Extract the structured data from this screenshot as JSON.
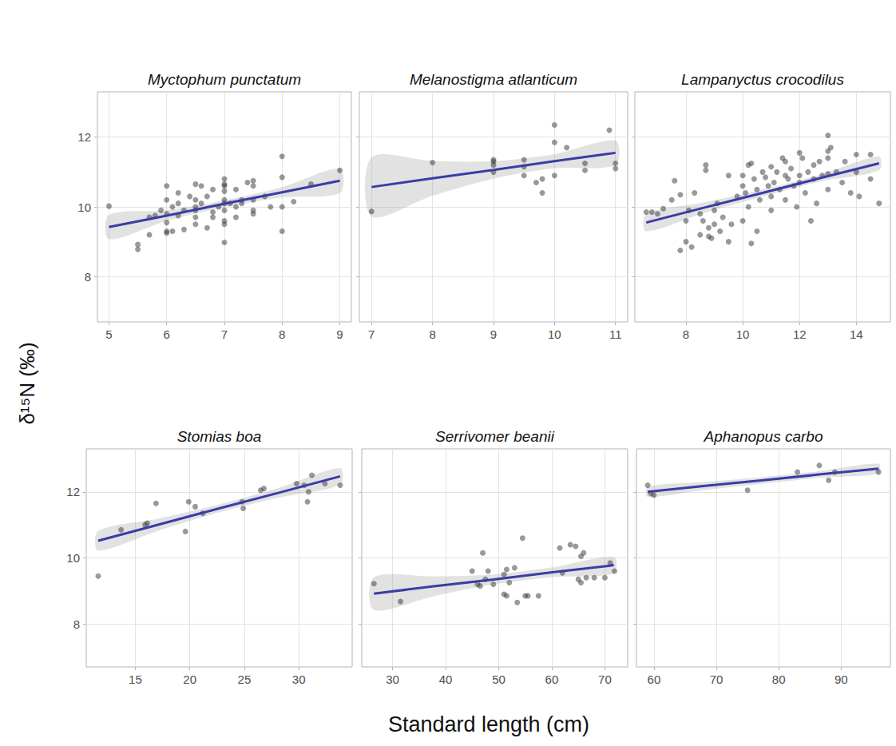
{
  "xlabel": "Standard length (cm)",
  "ylabel": "δ¹⁵N (‰)",
  "chart_data": [
    {
      "type": "scatter",
      "title": "Myctophum punctatum",
      "color": "#333333",
      "marker": "circle",
      "grid": true,
      "tick_labels": true,
      "x": [
        5,
        5.5,
        5.5,
        5.7,
        5.7,
        5.8,
        5.9,
        6,
        6,
        6,
        6,
        6,
        6,
        6.1,
        6.1,
        6.2,
        6.2,
        6.2,
        6.3,
        6.3,
        6.4,
        6.5,
        6.5,
        6.5,
        6.5,
        6.5,
        6.5,
        6.6,
        6.6,
        6.7,
        6.7,
        6.8,
        6.8,
        6.8,
        6.9,
        7,
        7,
        7,
        7,
        7,
        7,
        7,
        7,
        7,
        7,
        7.1,
        7.2,
        7.2,
        7.2,
        7.3,
        7.3,
        7.4,
        7.5,
        7.5,
        7.5,
        7.5,
        7.5,
        7.7,
        7.8,
        8,
        8,
        8,
        8,
        8.2,
        8.5,
        9
      ],
      "values": [
        10.02,
        8.92,
        8.78,
        9.2,
        9.7,
        9.75,
        9.9,
        9.25,
        9.55,
        9.8,
        10.2,
        10.6,
        9.3,
        10.0,
        9.3,
        9.75,
        10.1,
        10.4,
        9.9,
        9.35,
        10.3,
        10.65,
        9.5,
        9.9,
        10.0,
        10.2,
        9.7,
        10.1,
        10.6,
        9.4,
        10.3,
        10.5,
        9.7,
        9.85,
        10.0,
        10.8,
        10.6,
        10.45,
        10.2,
        10.1,
        9.9,
        9.6,
        9.5,
        8.98,
        10.65,
        10.1,
        10.0,
        9.7,
        10.5,
        10.1,
        10.2,
        10.7,
        10.75,
        10.6,
        9.9,
        9.8,
        10.2,
        10.3,
        10.0,
        11.45,
        10.85,
        10.0,
        9.3,
        10.15,
        10.65,
        11.05
      ],
      "fit": {
        "color": "#3b3ba8",
        "x": [
          5,
          6,
          7,
          8,
          9
        ],
        "values": [
          9.42,
          9.75,
          10.09,
          10.42,
          10.75
        ],
        "lower": [
          9.07,
          9.6,
          9.99,
          10.27,
          10.4
        ],
        "upper": [
          9.77,
          9.9,
          10.19,
          10.57,
          11.1
        ]
      },
      "xlim": [
        4.8,
        9.2
      ],
      "xticks": [
        5,
        6,
        7,
        8,
        9
      ],
      "ylim": [
        6.7,
        13.3
      ],
      "yticks": [
        8,
        10,
        12
      ]
    },
    {
      "type": "scatter",
      "title": "Melanostigma atlanticum",
      "color": "#333333",
      "marker": "circle",
      "grid": true,
      "tick_labels": "x",
      "x": [
        7,
        8,
        9,
        9,
        9,
        9,
        9.5,
        9.5,
        9.5,
        9.7,
        9.8,
        9.8,
        10,
        10,
        10,
        10.2,
        10.5,
        10.5,
        10.9,
        11,
        11
      ],
      "values": [
        9.87,
        11.27,
        11.35,
        11.3,
        11.0,
        11.2,
        11.35,
        11.15,
        10.9,
        10.7,
        10.4,
        10.8,
        12.35,
        11.85,
        10.9,
        11.7,
        11.25,
        11.05,
        12.2,
        11.25,
        11.1
      ],
      "fit": {
        "color": "#3b3ba8",
        "x": [
          7,
          8,
          9,
          10,
          11
        ],
        "values": [
          10.57,
          10.82,
          11.06,
          11.31,
          11.55
        ],
        "lower": [
          9.72,
          10.32,
          10.81,
          11.11,
          11.2
        ],
        "upper": [
          11.42,
          11.32,
          11.31,
          11.51,
          11.9
        ]
      },
      "xlim": [
        6.8,
        11.2
      ],
      "xticks": [
        7,
        8,
        9,
        10,
        11
      ],
      "ylim": [
        6.7,
        13.3
      ],
      "yticks": [
        8,
        10,
        12
      ]
    },
    {
      "type": "scatter",
      "title": "Lampanyctus crocodilus",
      "color": "#333333",
      "marker": "circle",
      "grid": true,
      "tick_labels": "x",
      "x": [
        6.6,
        6.8,
        7,
        7.2,
        7.5,
        7.6,
        7.8,
        7.8,
        8,
        8,
        8.1,
        8.2,
        8.3,
        8.5,
        8.5,
        8.6,
        8.7,
        8.7,
        8.8,
        8.8,
        8.9,
        9,
        9,
        9.1,
        9.2,
        9.3,
        9.5,
        9.5,
        9.6,
        9.8,
        10,
        10,
        10,
        10.1,
        10.2,
        10.2,
        10.3,
        10.3,
        10.4,
        10.5,
        10.5,
        10.6,
        10.7,
        10.8,
        10.9,
        11,
        11,
        11,
        11.1,
        11.2,
        11.3,
        11.4,
        11.5,
        11.5,
        11.5,
        11.6,
        11.7,
        11.8,
        11.9,
        12,
        12,
        12,
        12.1,
        12.2,
        12.3,
        12.4,
        12.5,
        12.5,
        12.6,
        12.7,
        12.8,
        13,
        13,
        13,
        13,
        13,
        13.1,
        13.3,
        13.5,
        13.6,
        13.8,
        14,
        14,
        14.1,
        14.5,
        14.5,
        14.8
      ],
      "values": [
        9.85,
        9.85,
        9.8,
        9.95,
        10.2,
        10.75,
        8.75,
        10.35,
        9.0,
        9.6,
        9.9,
        8.85,
        10.4,
        9.8,
        9.2,
        9.6,
        11.2,
        11.05,
        9.15,
        9.4,
        9.1,
        9.5,
        9.9,
        10.1,
        9.3,
        9.7,
        10.9,
        9.0,
        9.5,
        10.3,
        10.6,
        10.9,
        9.6,
        10.4,
        11.2,
        10.0,
        11.25,
        8.95,
        10.8,
        10.5,
        9.3,
        10.2,
        11.0,
        10.85,
        10.6,
        11.15,
        10.3,
        9.9,
        10.7,
        11.0,
        10.5,
        11.4,
        11.3,
        10.9,
        10.2,
        10.8,
        11.1,
        10.6,
        10.0,
        11.55,
        10.9,
        10.7,
        11.4,
        10.4,
        11.0,
        9.6,
        10.8,
        11.2,
        10.1,
        11.3,
        10.9,
        12.05,
        11.6,
        11.4,
        10.95,
        10.5,
        11.7,
        11.0,
        10.7,
        11.3,
        10.4,
        11.5,
        11.0,
        10.3,
        11.5,
        10.8,
        10.1
      ],
      "fit": {
        "color": "#3b3ba8",
        "x": [
          6.6,
          8.65,
          10.7,
          12.75,
          14.8
        ],
        "values": [
          9.55,
          9.98,
          10.4,
          10.83,
          11.25
        ],
        "lower": [
          9.3,
          9.83,
          10.3,
          10.73,
          11.05
        ],
        "upper": [
          9.8,
          10.13,
          10.5,
          10.93,
          11.45
        ]
      },
      "xlim": [
        6.2,
        15.2
      ],
      "xticks": [
        8,
        10,
        12,
        14
      ],
      "ylim": [
        6.7,
        13.3
      ],
      "yticks": [
        8,
        10,
        12
      ]
    },
    {
      "type": "scatter",
      "title": "Stomias boa",
      "color": "#333333",
      "marker": "circle",
      "grid": true,
      "tick_labels": true,
      "x": [
        11.6,
        13.7,
        15.9,
        16.1,
        16.9,
        19.6,
        19.9,
        20.5,
        21.2,
        24.8,
        24.9,
        26.5,
        26.8,
        29.8,
        30.5,
        30.8,
        30.9,
        31.2,
        32.4,
        33.8
      ],
      "values": [
        9.45,
        10.85,
        11.0,
        11.05,
        11.65,
        10.8,
        11.7,
        11.55,
        11.35,
        11.7,
        11.5,
        12.05,
        12.1,
        12.25,
        12.2,
        11.7,
        12.0,
        12.5,
        12.25,
        12.2
      ],
      "fit": {
        "color": "#3b3ba8",
        "x": [
          11.6,
          17.15,
          22.7,
          28.25,
          33.8
        ],
        "values": [
          10.52,
          11.01,
          11.5,
          11.98,
          12.47
        ],
        "lower": [
          10.22,
          10.83,
          11.38,
          11.83,
          12.22
        ],
        "upper": [
          10.82,
          11.19,
          11.62,
          12.13,
          12.72
        ]
      },
      "xlim": [
        10.5,
        34.9
      ],
      "xticks": [
        15,
        20,
        25,
        30
      ],
      "ylim": [
        6.7,
        13.3
      ],
      "yticks": [
        8,
        10,
        12
      ]
    },
    {
      "type": "scatter",
      "title": "Serrivomer beanii",
      "color": "#333333",
      "marker": "circle",
      "grid": true,
      "tick_labels": "x",
      "x": [
        26.5,
        31.5,
        45,
        46,
        46.5,
        47,
        47.5,
        48,
        49,
        51,
        51,
        51.5,
        51.5,
        52,
        53,
        53.5,
        54.5,
        55,
        55.5,
        57.5,
        61.5,
        62,
        63.5,
        64.5,
        65,
        65.5,
        65.5,
        66,
        66.5,
        68,
        70,
        71,
        71.8
      ],
      "values": [
        9.22,
        8.68,
        9.6,
        9.2,
        9.15,
        10.15,
        9.35,
        9.6,
        9.2,
        9.5,
        8.9,
        9.65,
        8.85,
        9.25,
        9.7,
        8.65,
        10.6,
        8.85,
        8.85,
        8.85,
        10.3,
        9.55,
        10.4,
        10.35,
        9.35,
        9.25,
        10.05,
        10.15,
        9.4,
        9.4,
        9.4,
        9.85,
        9.6
      ],
      "fit": {
        "color": "#3b3ba8",
        "x": [
          26.5,
          37.8,
          49.1,
          60.4,
          71.7
        ],
        "values": [
          8.92,
          9.14,
          9.35,
          9.57,
          9.78
        ],
        "lower": [
          8.42,
          8.84,
          9.2,
          9.42,
          9.53
        ],
        "upper": [
          9.42,
          9.44,
          9.5,
          9.72,
          10.03
        ]
      },
      "xlim": [
        24.2,
        74.3
      ],
      "xticks": [
        30,
        40,
        50,
        60,
        70
      ],
      "ylim": [
        6.7,
        13.3
      ],
      "yticks": [
        8,
        10,
        12
      ]
    },
    {
      "type": "scatter",
      "title": "Aphanopus carbo",
      "color": "#333333",
      "marker": "circle",
      "grid": true,
      "tick_labels": "x",
      "x": [
        59,
        59.5,
        60,
        75,
        83,
        86.5,
        88,
        89,
        96
      ],
      "values": [
        12.2,
        11.95,
        11.9,
        12.05,
        12.6,
        12.8,
        12.35,
        12.6,
        12.6
      ],
      "fit": {
        "color": "#3b3ba8",
        "x": [
          59,
          68.25,
          77.5,
          86.75,
          96
        ],
        "values": [
          12.0,
          12.18,
          12.35,
          12.53,
          12.7
        ],
        "lower": [
          11.85,
          12.06,
          12.25,
          12.43,
          12.55
        ],
        "upper": [
          12.15,
          12.3,
          12.45,
          12.63,
          12.85
        ]
      },
      "xlim": [
        57.2,
        97.9
      ],
      "xticks": [
        60,
        70,
        80,
        90
      ],
      "ylim": [
        6.7,
        13.3
      ],
      "yticks": [
        8,
        10,
        12
      ]
    }
  ]
}
